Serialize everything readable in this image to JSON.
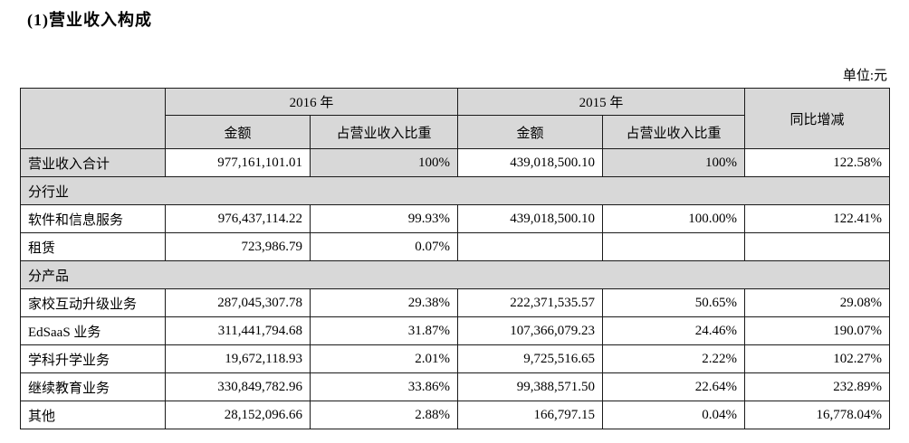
{
  "page": {
    "title": "(1)营业收入构成",
    "unit_label": "单位:元"
  },
  "table": {
    "header": {
      "corner": "",
      "year_2016": "2016 年",
      "year_2015": "2015 年",
      "yoy": "同比增减",
      "amount": "金额",
      "ratio": "占营业收入比重"
    },
    "cell_names": [
      "row-label",
      "amount-2016",
      "ratio-2016",
      "amount-2015",
      "ratio-2015",
      "yoy-change"
    ],
    "rows": [
      {
        "type": "data",
        "cells": [
          "营业收入合计",
          "977,161,101.01",
          "100%",
          "439,018,500.10",
          "100%",
          "122.58%"
        ],
        "shaded": [
          true,
          false,
          true,
          false,
          true,
          false
        ]
      },
      {
        "type": "section",
        "label": "分行业"
      },
      {
        "type": "data",
        "cells": [
          "软件和信息服务",
          "976,437,114.22",
          "99.93%",
          "439,018,500.10",
          "100.00%",
          "122.41%"
        ],
        "shaded": [
          false,
          false,
          false,
          false,
          false,
          false
        ]
      },
      {
        "type": "data",
        "cells": [
          "租赁",
          "723,986.79",
          "0.07%",
          "",
          "",
          ""
        ],
        "shaded": [
          false,
          false,
          false,
          false,
          false,
          false
        ]
      },
      {
        "type": "section",
        "label": "分产品"
      },
      {
        "type": "data",
        "cells": [
          "家校互动升级业务",
          "287,045,307.78",
          "29.38%",
          "222,371,535.57",
          "50.65%",
          "29.08%"
        ],
        "shaded": [
          false,
          false,
          false,
          false,
          false,
          false
        ]
      },
      {
        "type": "data",
        "cells": [
          "EdSaaS 业务",
          "311,441,794.68",
          "31.87%",
          "107,366,079.23",
          "24.46%",
          "190.07%"
        ],
        "shaded": [
          false,
          false,
          false,
          false,
          false,
          false
        ]
      },
      {
        "type": "data",
        "cells": [
          "学科升学业务",
          "19,672,118.93",
          "2.01%",
          "9,725,516.65",
          "2.22%",
          "102.27%"
        ],
        "shaded": [
          false,
          false,
          false,
          false,
          false,
          false
        ]
      },
      {
        "type": "data",
        "cells": [
          "继续教育业务",
          "330,849,782.96",
          "33.86%",
          "99,388,571.50",
          "22.64%",
          "232.89%"
        ],
        "shaded": [
          false,
          false,
          false,
          false,
          false,
          false
        ]
      },
      {
        "type": "data",
        "cells": [
          "其他",
          "28,152,096.66",
          "2.88%",
          "166,797.15",
          "0.04%",
          "16,778.04%"
        ],
        "shaded": [
          false,
          false,
          false,
          false,
          false,
          false
        ]
      }
    ]
  }
}
